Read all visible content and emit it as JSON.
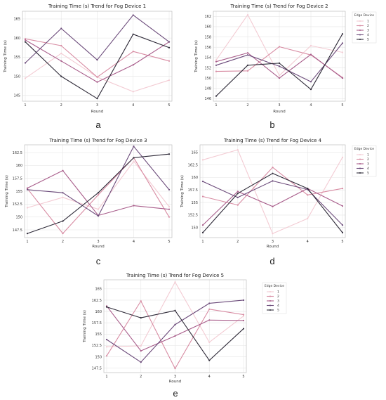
{
  "series_colors": [
    "#f3cbd3",
    "#d88ca3",
    "#a85c8a",
    "#6b4a7a",
    "#2e2a38"
  ],
  "chart_data": [
    {
      "type": "line",
      "panel_label": "a",
      "title": "Training Time (s) Trend for Fog Device 1",
      "xlabel": "Round",
      "ylabel": "Training Time (s)",
      "x": [
        1,
        2,
        3,
        4,
        5
      ],
      "ylim": [
        143.5,
        167
      ],
      "yticks": [
        145,
        150,
        155,
        160,
        165
      ],
      "grid": true,
      "legend": null,
      "series": [
        {
          "values": [
            149.5,
            156,
            149.8,
            146,
            149
          ]
        },
        {
          "values": [
            159.8,
            158,
            149.8,
            156.5,
            154
          ]
        },
        {
          "values": [
            159.5,
            154,
            148.5,
            153,
            159
          ]
        },
        {
          "values": [
            153.5,
            162.5,
            154.3,
            166,
            159
          ]
        },
        {
          "values": [
            159,
            150,
            144.2,
            161,
            157.5
          ]
        }
      ]
    },
    {
      "type": "line",
      "panel_label": "b",
      "title": "Training Time (s) Trend for Fog Device 2",
      "xlabel": "Round",
      "ylabel": "Training Time (s)",
      "x": [
        1,
        2,
        3,
        4,
        5
      ],
      "ylim": [
        145.5,
        163
      ],
      "yticks": [
        146,
        148,
        150,
        152,
        154,
        156,
        158,
        160,
        162
      ],
      "grid": true,
      "legend": {
        "title": "Edge Device",
        "entries": [
          "1",
          "2",
          "3",
          "4",
          "5"
        ],
        "placement": "outside-right"
      },
      "series": [
        {
          "values": [
            153.5,
            162.3,
            150.5,
            156.3,
            155
          ]
        },
        {
          "values": [
            151.3,
            151.4,
            156.1,
            154.5,
            150.1
          ]
        },
        {
          "values": [
            153.2,
            154.9,
            150,
            154.6,
            150
          ]
        },
        {
          "values": [
            152.5,
            154.5,
            152.3,
            149.3,
            156.8
          ]
        },
        {
          "values": [
            146.5,
            152.5,
            152.9,
            147.8,
            158.6
          ]
        }
      ]
    },
    {
      "type": "line",
      "panel_label": "c",
      "title": "Training Time (s) Trend for Fog Device 3",
      "xlabel": "Round",
      "ylabel": "Training Time (s)",
      "x": [
        1,
        2,
        3,
        4,
        5
      ],
      "ylim": [
        146,
        164
      ],
      "yticks": [
        147.5,
        150,
        152.5,
        155,
        157.5,
        160,
        162.5
      ],
      "grid": true,
      "legend": null,
      "series": [
        {
          "values": [
            151.8,
            153.8,
            151.5,
            160.8,
            152
          ]
        },
        {
          "values": [
            155.5,
            146.8,
            154.3,
            161.5,
            150
          ]
        },
        {
          "values": [
            155.6,
            159,
            150.3,
            152.2,
            151.5
          ]
        },
        {
          "values": [
            155.3,
            154.7,
            150.2,
            163.7,
            155.3
          ]
        },
        {
          "values": [
            146.8,
            149.2,
            154.7,
            161.5,
            162.2
          ]
        }
      ]
    },
    {
      "type": "line",
      "panel_label": "d",
      "title": "Training Time (s) Trend for Fog Device 4",
      "xlabel": "Round",
      "ylabel": "Training Time (s)",
      "x": [
        1,
        2,
        3,
        4,
        5
      ],
      "ylim": [
        148,
        166.5
      ],
      "yticks": [
        150,
        152.5,
        155,
        157.5,
        160,
        162.5,
        165
      ],
      "grid": true,
      "legend": {
        "title": "Edge Device",
        "entries": [
          "1",
          "2",
          "3",
          "4",
          "5"
        ],
        "placement": "outside-right"
      },
      "series": [
        {
          "values": [
            163.5,
            165.5,
            148.8,
            151.8,
            164
          ]
        },
        {
          "values": [
            156.2,
            154.5,
            162,
            156.5,
            157.8
          ]
        },
        {
          "values": [
            150.5,
            157.2,
            154.2,
            157.8,
            154.3
          ]
        },
        {
          "values": [
            159.2,
            156,
            159.3,
            157.6,
            150.5
          ]
        },
        {
          "values": [
            149,
            156.8,
            160.8,
            157.8,
            149
          ]
        }
      ]
    },
    {
      "type": "line",
      "panel_label": "e",
      "title": "Training Time (s) Trend for Fog Device 5",
      "xlabel": "Round",
      "ylabel": "Training Time (s)",
      "x": [
        1,
        2,
        3,
        4,
        5
      ],
      "ylim": [
        146.5,
        167
      ],
      "yticks": [
        147.5,
        150,
        152.5,
        155,
        157.5,
        160,
        162.5,
        165
      ],
      "grid": true,
      "legend": {
        "title": "Edge Device",
        "entries": [
          "1",
          "2",
          "3",
          "4",
          "5"
        ],
        "placement": "outside-right"
      },
      "series": [
        {
          "values": [
            152.2,
            152.4,
            166.5,
            153.2,
            159
          ]
        },
        {
          "values": [
            150.2,
            162.3,
            147.4,
            160.5,
            159.3
          ]
        },
        {
          "values": [
            161.2,
            151.3,
            154.6,
            158.1,
            158
          ]
        },
        {
          "values": [
            153.8,
            148.8,
            157.1,
            161.8,
            162.5
          ]
        },
        {
          "values": [
            161,
            158.6,
            160.2,
            149.2,
            156.2
          ]
        }
      ]
    }
  ]
}
